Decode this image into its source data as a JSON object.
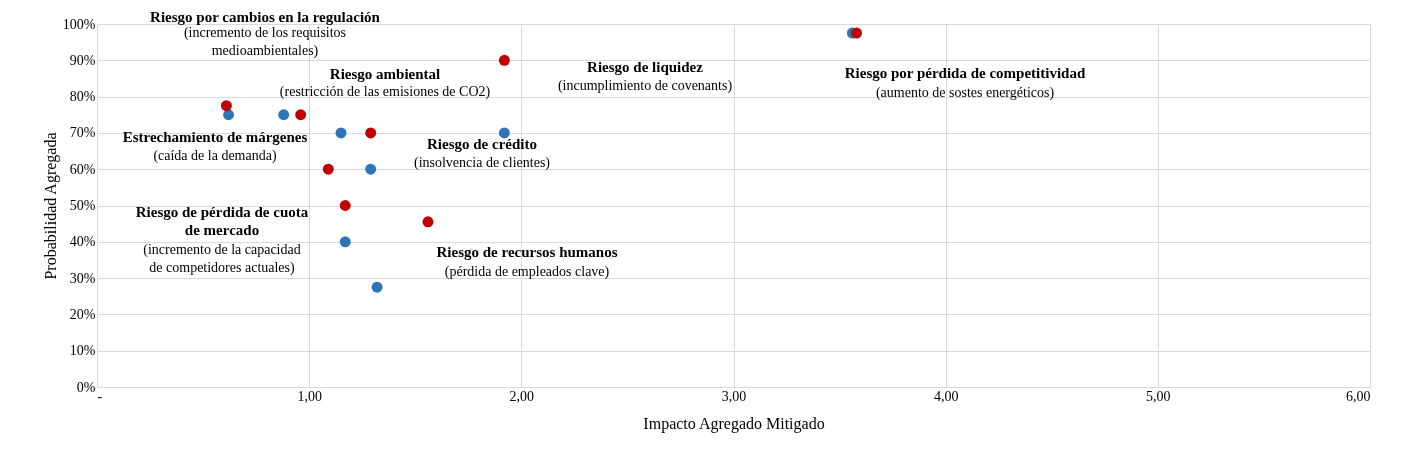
{
  "chart_data": {
    "type": "scatter",
    "xlabel": "Impacto Agregado Mitigado",
    "ylabel": "Probabilidad Agregada",
    "series": [
      {
        "color": "#2e75b6",
        "values": [
          75,
          75,
          70,
          60,
          40,
          27.5,
          70,
          97.5
        ],
        "x": [
          0.62,
          0.88,
          1.15,
          1.29,
          1.17,
          1.32,
          1.92,
          3.56
        ]
      },
      {
        "color": "#c00000",
        "values": [
          77.5,
          75,
          60,
          70,
          50,
          45.5,
          90,
          97.5
        ],
        "x": [
          0.61,
          0.96,
          1.09,
          1.29,
          1.17,
          1.56,
          1.92,
          3.58
        ]
      }
    ],
    "marker": "circle",
    "xlim": [
      0,
      6
    ],
    "ylim": [
      0,
      100
    ],
    "xticks": [
      {
        "value": 0,
        "label": "-"
      },
      {
        "value": 1,
        "label": "1,00"
      },
      {
        "value": 2,
        "label": "2,00"
      },
      {
        "value": 3,
        "label": "3,00"
      },
      {
        "value": 4,
        "label": "4,00"
      },
      {
        "value": 5,
        "label": "5,00"
      },
      {
        "value": 6,
        "label": "6,00"
      }
    ],
    "yticks": [
      {
        "value": 0,
        "label": "0%"
      },
      {
        "value": 10,
        "label": "10%"
      },
      {
        "value": 20,
        "label": "20%"
      },
      {
        "value": 30,
        "label": "30%"
      },
      {
        "value": 40,
        "label": "40%"
      },
      {
        "value": 50,
        "label": "50%"
      },
      {
        "value": 60,
        "label": "60%"
      },
      {
        "value": 70,
        "label": "70%"
      },
      {
        "value": 80,
        "label": "80%"
      },
      {
        "value": 90,
        "label": "90%"
      },
      {
        "value": 100,
        "label": "100%"
      }
    ],
    "grid": true,
    "annotations": [
      "Riesgo por cambios en la regulación",
      "(incremento de los requisitos\nmedioambientales)",
      "Riesgo ambiental",
      "(restricción de las emisiones de CO2)",
      "Riesgo de liquidez",
      "(incumplimiento de covenants)",
      "Riesgo por pérdida de competitividad",
      "(aumento de sostes energéticos)",
      "Estrechamiento de márgenes",
      "(caída de la demanda)",
      "Riesgo de crédito",
      "(insolvencia de clientes)",
      "Riesgo de pérdida de cuota\nde mercado",
      "(incremento de la capacidad\nde competidores actuales)",
      "Riesgo de recursos humanos",
      "(pérdida de empleados clave)"
    ]
  }
}
